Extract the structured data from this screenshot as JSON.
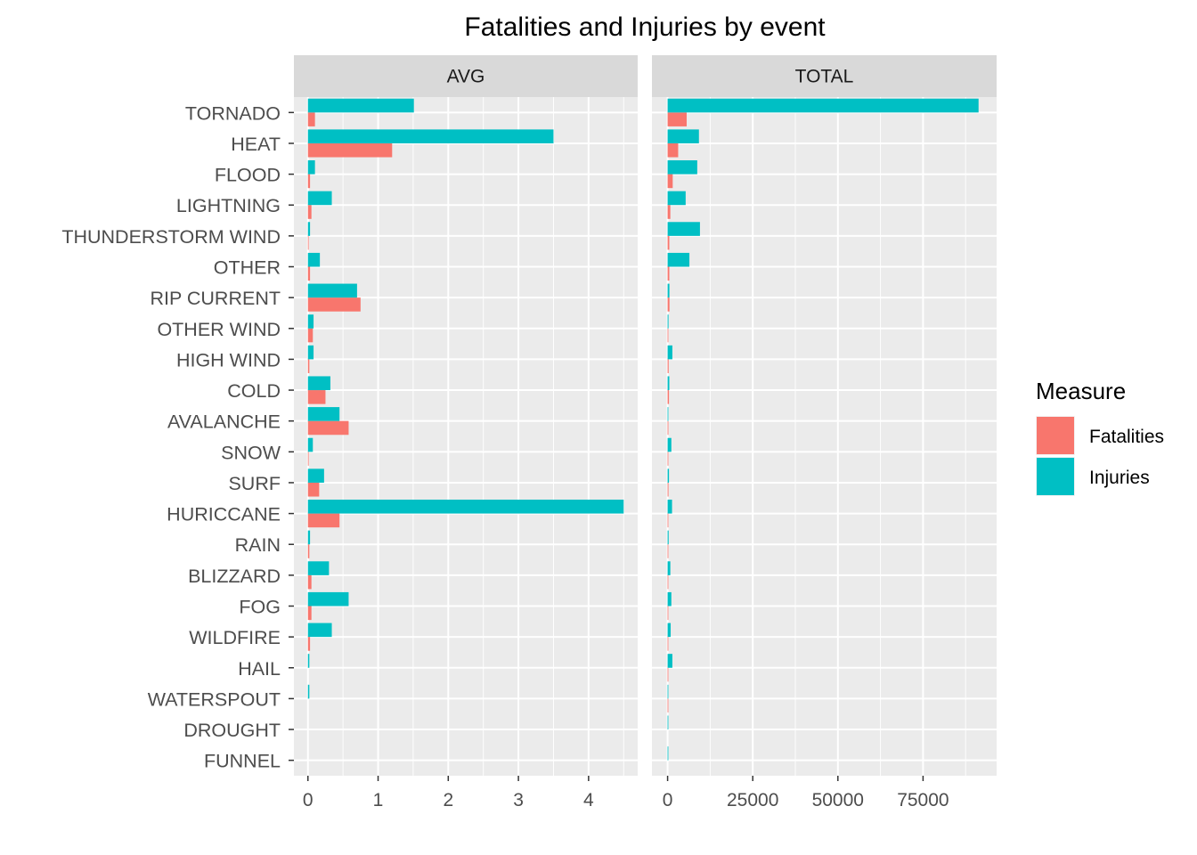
{
  "chart_data": {
    "type": "bar",
    "orientation": "horizontal",
    "title": "Fatalities and Injuries by event",
    "categories": [
      "TORNADO",
      "HEAT",
      "FLOOD",
      "LIGHTNING",
      "THUNDERSTORM WIND",
      "OTHER",
      "RIP CURRENT",
      "OTHER WIND",
      "HIGH WIND",
      "COLD",
      "AVALANCHE",
      "SNOW",
      "SURF",
      "HURICCANE",
      "RAIN",
      "BLIZZARD",
      "FOG",
      "WILDFIRE",
      "HAIL",
      "WATERSPOUT",
      "DROUGHT",
      "FUNNEL"
    ],
    "legend": {
      "title": "Measure",
      "placement": "right",
      "entries": [
        {
          "name": "Fatalities",
          "color": "#F8766D"
        },
        {
          "name": "Injuries",
          "color": "#00BFC4"
        }
      ]
    },
    "panels": [
      {
        "label": "AVG",
        "xlim": [
          -0.2,
          4.7
        ],
        "ticks": [
          0,
          1,
          2,
          3,
          4
        ],
        "tick_labels": [
          "0",
          "1",
          "2",
          "3",
          "4"
        ],
        "series": [
          {
            "name": "Fatalities",
            "values": [
              0.1,
              1.2,
              0.03,
              0.05,
              0.01,
              0.03,
              0.75,
              0.07,
              0.02,
              0.25,
              0.58,
              0.01,
              0.16,
              0.45,
              0.02,
              0.05,
              0.05,
              0.03,
              0.0,
              0.0,
              0.0,
              0.0
            ]
          },
          {
            "name": "Injuries",
            "values": [
              1.51,
              3.5,
              0.1,
              0.34,
              0.03,
              0.17,
              0.7,
              0.08,
              0.08,
              0.32,
              0.45,
              0.07,
              0.23,
              4.5,
              0.03,
              0.3,
              0.58,
              0.34,
              0.02,
              0.02,
              0.0,
              0.0
            ]
          }
        ]
      },
      {
        "label": "TOTAL",
        "xlim": [
          -4600,
          96600
        ],
        "ticks": [
          0,
          25000,
          50000,
          75000
        ],
        "tick_labels": [
          "0",
          "25000",
          "50000",
          "75000"
        ],
        "series": [
          {
            "name": "Fatalities",
            "values": [
              5600,
              3100,
              1500,
              800,
              500,
              500,
              550,
              200,
              300,
              400,
              220,
              150,
              250,
              130,
              100,
              100,
              80,
              90,
              15,
              5,
              0,
              0
            ]
          },
          {
            "name": "Injuries",
            "values": [
              91300,
              9200,
              8700,
              5300,
              9500,
              6400,
              530,
              260,
              1400,
              500,
              170,
              1100,
              400,
              1300,
              300,
              800,
              1100,
              900,
              1400,
              30,
              20,
              5
            ]
          }
        ]
      }
    ],
    "grid": true
  }
}
